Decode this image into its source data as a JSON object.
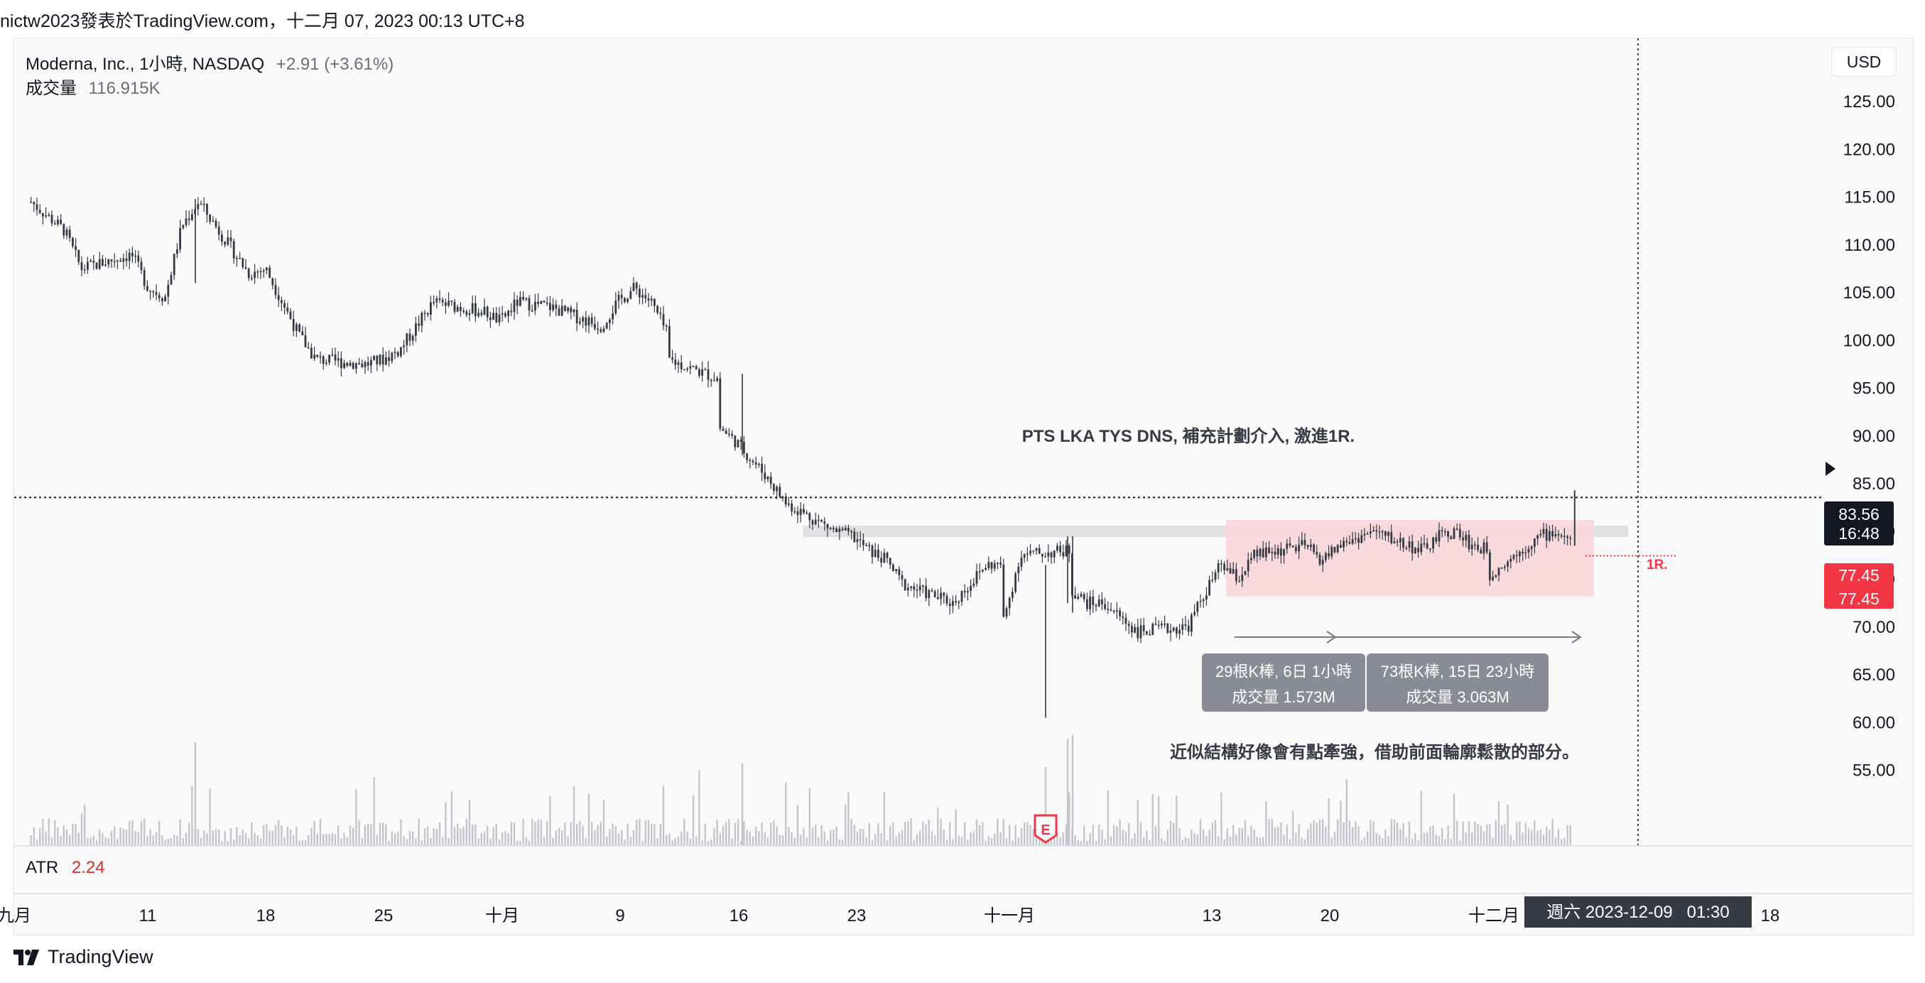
{
  "header": {
    "publisher_line": "nictw2023發表於TradingView.com，十二月 07, 2023 00:13 UTC+8"
  },
  "legend": {
    "symbol": "Moderna, Inc., 1小時, NASDAQ",
    "change": "+2.91 (+3.61%)",
    "volume_label": "成交量",
    "volume_value": "116.915K"
  },
  "currency_button": "USD",
  "atr": {
    "label": "ATR",
    "value": "2.24",
    "color": "#d32f2f"
  },
  "brand": {
    "name": "TradingView"
  },
  "chart_data": {
    "type": "candlestick",
    "title": "Moderna, Inc., 1小時, NASDAQ",
    "y_axis": {
      "ticks": [
        "125.00",
        "120.00",
        "115.00",
        "110.00",
        "105.00",
        "100.00",
        "95.00",
        "90.00",
        "85.00",
        "80.00",
        "75.00",
        "70.00",
        "65.00",
        "60.00",
        "55.00"
      ],
      "ylim": [
        52,
        128
      ]
    },
    "x_axis": {
      "ticks": [
        "九月",
        "11",
        "18",
        "25",
        "十月",
        "9",
        "16",
        "23",
        "十一月",
        "13",
        "20",
        "十二月",
        "18"
      ]
    },
    "price_path": [
      {
        "t": "2023-09-05",
        "p": 114.5
      },
      {
        "t": "2023-09-07",
        "p": 111.5
      },
      {
        "t": "2023-09-08",
        "p": 107.5
      },
      {
        "t": "2023-09-11",
        "p": 109.0
      },
      {
        "t": "2023-09-12",
        "p": 105.5
      },
      {
        "t": "2023-09-13",
        "p": 104.5
      },
      {
        "t": "2023-09-14",
        "p": 112.0
      },
      {
        "t": "2023-09-15",
        "p": 114.5
      },
      {
        "t": "2023-09-18",
        "p": 107.0
      },
      {
        "t": "2023-09-19",
        "p": 107.5
      },
      {
        "t": "2023-09-20",
        "p": 104.0
      },
      {
        "t": "2023-09-21",
        "p": 100.5
      },
      {
        "t": "2023-09-22",
        "p": 98.0
      },
      {
        "t": "2023-09-25",
        "p": 97.5
      },
      {
        "t": "2023-09-26",
        "p": 98.0
      },
      {
        "t": "2023-09-27",
        "p": 99.0
      },
      {
        "t": "2023-09-28",
        "p": 101.5
      },
      {
        "t": "2023-09-29",
        "p": 104.0
      },
      {
        "t": "2023-10-02",
        "p": 103.0
      },
      {
        "t": "2023-10-03",
        "p": 102.0
      },
      {
        "t": "2023-10-04",
        "p": 104.0
      },
      {
        "t": "2023-10-06",
        "p": 103.5
      },
      {
        "t": "2023-10-09",
        "p": 101.5
      },
      {
        "t": "2023-10-10",
        "p": 104.0
      },
      {
        "t": "2023-10-11",
        "p": 105.5
      },
      {
        "t": "2023-10-12",
        "p": 104.0
      },
      {
        "t": "2023-10-13",
        "p": 100.5
      },
      {
        "t": "2023-10-13",
        "p": 98.0
      },
      {
        "t": "2023-10-16",
        "p": 96.0
      },
      {
        "t": "2023-10-16",
        "p": 91.0
      },
      {
        "t": "2023-10-17",
        "p": 89.5
      },
      {
        "t": "2023-10-18",
        "p": 87.5
      },
      {
        "t": "2023-10-19",
        "p": 85.5
      },
      {
        "t": "2023-10-20",
        "p": 83.0
      },
      {
        "t": "2023-10-23",
        "p": 80.0
      },
      {
        "t": "2023-10-24",
        "p": 79.5
      },
      {
        "t": "2023-10-25",
        "p": 78.0
      },
      {
        "t": "2023-10-26",
        "p": 77.0
      },
      {
        "t": "2023-10-27",
        "p": 74.5
      },
      {
        "t": "2023-10-30",
        "p": 72.5
      },
      {
        "t": "2023-10-31",
        "p": 74.5
      },
      {
        "t": "2023-11-01",
        "p": 76.5
      },
      {
        "t": "2023-11-02",
        "p": 76.5
      },
      {
        "t": "2023-11-02",
        "p": 70.5
      },
      {
        "t": "2023-11-03",
        "p": 77.5
      },
      {
        "t": "2023-11-06",
        "p": 78.0
      },
      {
        "t": "2023-11-06",
        "p": 74.0
      },
      {
        "t": "2023-11-07",
        "p": 72.5
      },
      {
        "t": "2023-11-08",
        "p": 72.5
      },
      {
        "t": "2023-11-09",
        "p": 71.0
      },
      {
        "t": "2023-11-10",
        "p": 69.5
      },
      {
        "t": "2023-11-13",
        "p": 70.0
      },
      {
        "t": "2023-11-14",
        "p": 73.5
      },
      {
        "t": "2023-11-15",
        "p": 76.5
      },
      {
        "t": "2023-11-16",
        "p": 75.0
      },
      {
        "t": "2023-11-17",
        "p": 77.5
      },
      {
        "t": "2023-11-20",
        "p": 78.5
      },
      {
        "t": "2023-11-21",
        "p": 77.0
      },
      {
        "t": "2023-11-22",
        "p": 78.5
      },
      {
        "t": "2023-11-24",
        "p": 80.0
      },
      {
        "t": "2023-11-27",
        "p": 78.0
      },
      {
        "t": "2023-11-28",
        "p": 79.5
      },
      {
        "t": "2023-11-29",
        "p": 80.0
      },
      {
        "t": "2023-11-30",
        "p": 78.5
      },
      {
        "t": "2023-12-01",
        "p": 78.0
      },
      {
        "t": "2023-12-01",
        "p": 75.5
      },
      {
        "t": "2023-12-04",
        "p": 79.5
      },
      {
        "t": "2023-12-05",
        "p": 80.0
      },
      {
        "t": "2023-12-06",
        "p": 78.5
      },
      {
        "t": "2023-12-06",
        "p": 83.56
      }
    ],
    "last_price": "83.56",
    "countdown": "16:48",
    "stop_price_labels": [
      "77.45",
      "77.45"
    ],
    "annotations": {
      "main_note": "PTS LKA TYS DNS, 補充計劃介入, 激進1R.",
      "sub_note": "近似結構好像會有點牽強，借助前面輪廓鬆散的部分。",
      "r_label": "1R.",
      "range1": {
        "line1": "29根K棒, 6日 1小時",
        "line2": "成交量 1.573M"
      },
      "range2": {
        "line1": "73根K棒, 15日 23小時",
        "line2": "成交量 3.063M"
      },
      "earnings_marker": "E"
    },
    "resistance_zone": [
      79.4,
      80.6
    ],
    "pink_box": [
      73.2,
      81.2
    ],
    "crosshair_date_label": "週六 2023-12-09   01:30",
    "colors": {
      "candle": "#363a45",
      "volume": "#c4c6cd",
      "pink_box": "#f8d7da",
      "gray_zone": "#e1e1e3",
      "red": "#f23645",
      "last_price_bg": "#131722"
    }
  }
}
